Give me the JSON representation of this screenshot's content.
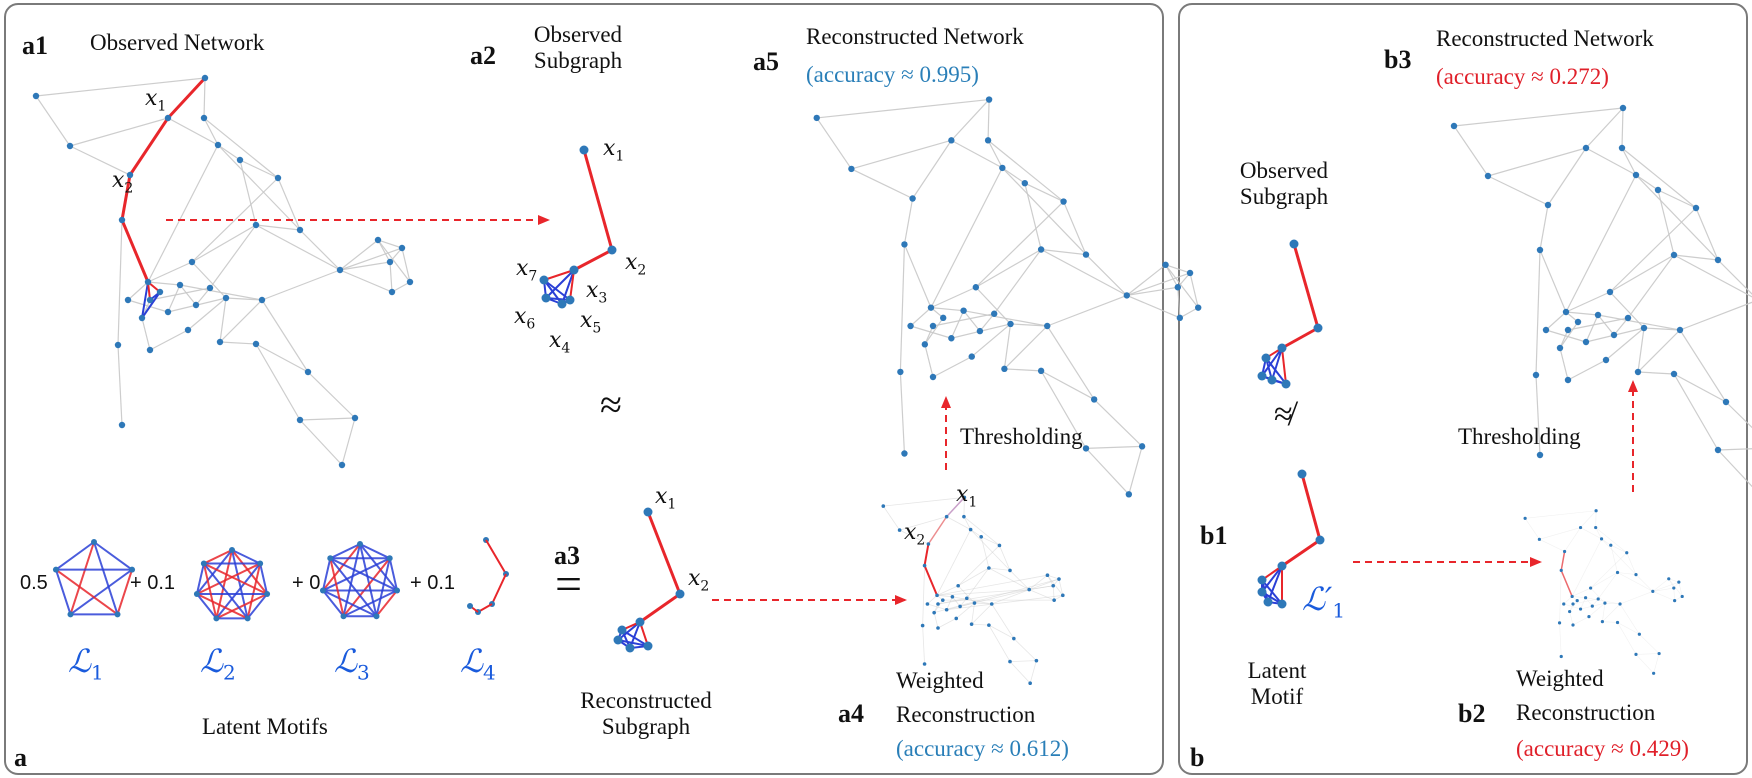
{
  "panel_a": {
    "letter": "a",
    "a1": {
      "tag": "a1",
      "title": "Observed Network"
    },
    "a2": {
      "tag": "a2",
      "title_line1": "Observed",
      "title_line2": "Subgraph"
    },
    "a3": {
      "tag": "a3",
      "title_line1": "Reconstructed",
      "title_line2": "Subgraph"
    },
    "a4": {
      "tag": "a4",
      "title_line1": "Weighted",
      "title_line2": "Reconstruction",
      "accuracy": "(accuracy ≈ 0.612)"
    },
    "a5": {
      "tag": "a5",
      "title": "Reconstructed Network",
      "accuracy": "(accuracy ≈ 0.995)"
    },
    "thresholding": "Thresholding",
    "approx_symbol": "≈",
    "equals_symbol": "=",
    "latent_motifs_label": "Latent Motifs",
    "coefficients": [
      "0.5",
      "+ 0.1",
      "+ 0",
      "+ 0.1"
    ],
    "motifs": [
      {
        "name": "ℒ",
        "sub": "1"
      },
      {
        "name": "ℒ",
        "sub": "2"
      },
      {
        "name": "ℒ",
        "sub": "3"
      },
      {
        "name": "ℒ",
        "sub": "4"
      }
    ],
    "node_labels": {
      "x1": {
        "name": "x",
        "sub": "1"
      },
      "x2": {
        "name": "x",
        "sub": "2"
      },
      "x3": {
        "name": "x",
        "sub": "3"
      },
      "x4": {
        "name": "x",
        "sub": "4"
      },
      "x5": {
        "name": "x",
        "sub": "5"
      },
      "x6": {
        "name": "x",
        "sub": "6"
      },
      "x7": {
        "name": "x",
        "sub": "7"
      }
    }
  },
  "panel_b": {
    "letter": "b",
    "b1": {
      "tag": "b1",
      "motif_name": "ℒ′",
      "motif_sub": "1",
      "title_line1": "Latent",
      "title_line2": "Motif"
    },
    "b2": {
      "tag": "b2",
      "title_line1": "Weighted",
      "title_line2": "Reconstruction",
      "accuracy": "(accuracy ≈ 0.429)"
    },
    "b3": {
      "tag": "b3",
      "title": "Reconstructed Network",
      "accuracy": "(accuracy ≈ 0.272)"
    },
    "observed_line1": "Observed",
    "observed_line2": "Subgraph",
    "thresholding": "Thresholding",
    "not_approx_symbol": "≉"
  },
  "colors": {
    "node": "#2e78b8",
    "edge_gray": "#c8c8c8",
    "edge_red": "#e8262b",
    "edge_blue": "#2a3fd6",
    "arrow_red": "#e8262b",
    "accuracy_good": "#2a7fb8",
    "accuracy_bad": "#e0202a",
    "motif_label": "#1a5bdc"
  }
}
